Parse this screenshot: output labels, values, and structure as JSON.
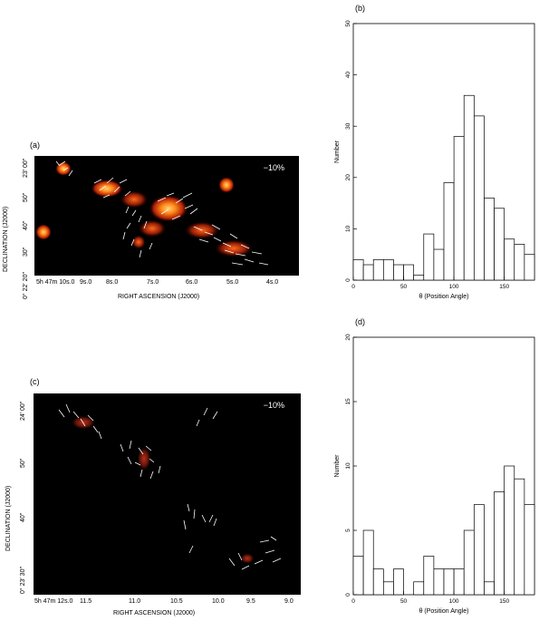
{
  "panel_a": {
    "label": "(a)",
    "scale_label": "−10%",
    "xlabel": "RIGHT ASCENSION (J2000)",
    "ylabel": "DECLINATION (J2000)",
    "xticks": [
      "5h 47m 10s.0",
      "9s.0",
      "8s.0",
      "7s.0",
      "6s.0",
      "5s.0",
      "4s.0"
    ],
    "yticks": [
      "23′ 00″",
      "50″",
      "40″",
      "30″",
      "0° 22′ 20″"
    ]
  },
  "panel_c": {
    "label": "(c)",
    "scale_label": "−10%",
    "xlabel": "RIGHT ASCENSION (J2000)",
    "ylabel": "DECLINATION (J2000)",
    "xticks": [
      "5h 47m 12s.0",
      "11.5",
      "11.0",
      "10.5",
      "10.0",
      "9.5",
      "9.0"
    ],
    "yticks": [
      "24′ 00″",
      "50″",
      "40″",
      "0° 23′ 30″"
    ]
  },
  "chart_data": [
    {
      "panel": "(b)",
      "type": "bar",
      "xlabel": "θ (Position Angle)",
      "ylabel": "Number",
      "xlim": [
        0,
        180
      ],
      "ylim": [
        0,
        50
      ],
      "xticks": [
        0,
        50,
        100,
        150
      ],
      "yticks": [
        0,
        10,
        20,
        30,
        40,
        50
      ],
      "bin_edges": [
        0,
        10,
        20,
        30,
        40,
        50,
        60,
        70,
        80,
        90,
        100,
        110,
        120,
        130,
        140,
        150,
        160,
        170,
        180
      ],
      "values": [
        4,
        3,
        4,
        4,
        3,
        3,
        1,
        9,
        6,
        19,
        28,
        36,
        32,
        16,
        14,
        8,
        7,
        5
      ]
    },
    {
      "panel": "(d)",
      "type": "bar",
      "xlabel": "θ (Position Angle)",
      "ylabel": "Number",
      "xlim": [
        0,
        180
      ],
      "ylim": [
        0,
        20
      ],
      "xticks": [
        0,
        50,
        100,
        150
      ],
      "yticks": [
        0,
        5,
        10,
        15,
        20
      ],
      "bin_edges": [
        0,
        10,
        20,
        30,
        40,
        50,
        60,
        70,
        80,
        90,
        100,
        110,
        120,
        130,
        140,
        150,
        160,
        170,
        180
      ],
      "values": [
        3,
        5,
        2,
        1,
        2,
        0,
        1,
        3,
        2,
        2,
        2,
        5,
        7,
        1,
        8,
        10,
        9,
        7
      ]
    }
  ]
}
